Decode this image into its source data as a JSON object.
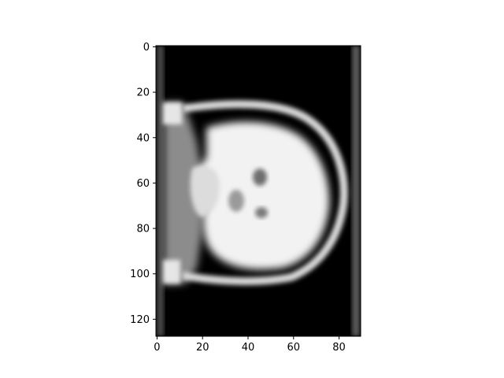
{
  "chart_data": {
    "type": "heatmap",
    "colormap": "gray",
    "title": "",
    "xlabel": "",
    "ylabel": "",
    "xlim": [
      -0.5,
      89.5
    ],
    "ylim": [
      127.5,
      -0.5
    ],
    "y_axis_inverted": true,
    "x_ticks": [
      0,
      20,
      40,
      60,
      80
    ],
    "x_tick_labels": [
      "0",
      "20",
      "40",
      "60",
      "80"
    ],
    "y_ticks": [
      0,
      20,
      40,
      60,
      80,
      100,
      120
    ],
    "y_tick_labels": [
      "0",
      "20",
      "40",
      "60",
      "80",
      "100",
      "120"
    ],
    "image_description_values": {
      "background_intensity": 0.0,
      "skull_ring_intensity": 0.85,
      "brain_tissue_intensity": 1.0,
      "soft_tissue_left_intensity": 0.55,
      "edge_strip_intensity": 0.35
    },
    "grid": false,
    "legend": "none"
  }
}
